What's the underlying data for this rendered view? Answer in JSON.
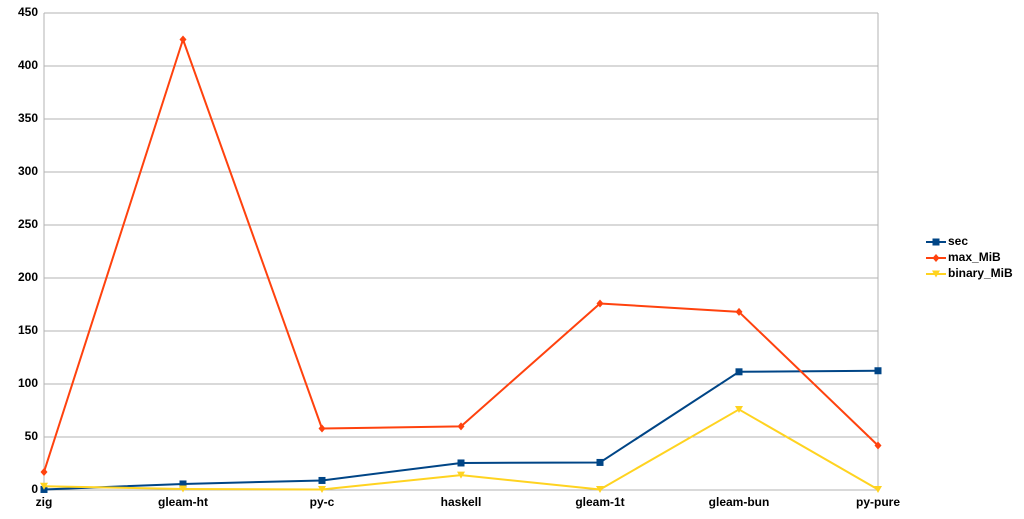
{
  "chart_data": {
    "type": "line",
    "categories": [
      "zig",
      "gleam-ht",
      "py-c",
      "haskell",
      "gleam-1t",
      "gleam-bun",
      "py-pure"
    ],
    "series": [
      {
        "name": "sec",
        "color": "#004586",
        "marker": "square",
        "values": [
          0.5,
          5.7,
          9,
          25.5,
          26,
          111.5,
          112.5
        ]
      },
      {
        "name": "max_MiB",
        "color": "#ff420e",
        "marker": "diamond",
        "values": [
          17,
          425,
          58,
          60,
          176,
          168,
          42
        ]
      },
      {
        "name": "binary_MiB",
        "color": "#ffd320",
        "marker": "triangle-down",
        "values": [
          3.5,
          1,
          0.5,
          14,
          0.5,
          76,
          0.5
        ]
      }
    ],
    "ylim": [
      0,
      450
    ],
    "yticks": [
      0,
      50,
      100,
      150,
      200,
      250,
      300,
      350,
      400,
      450
    ],
    "grid": true,
    "legend": "right"
  }
}
